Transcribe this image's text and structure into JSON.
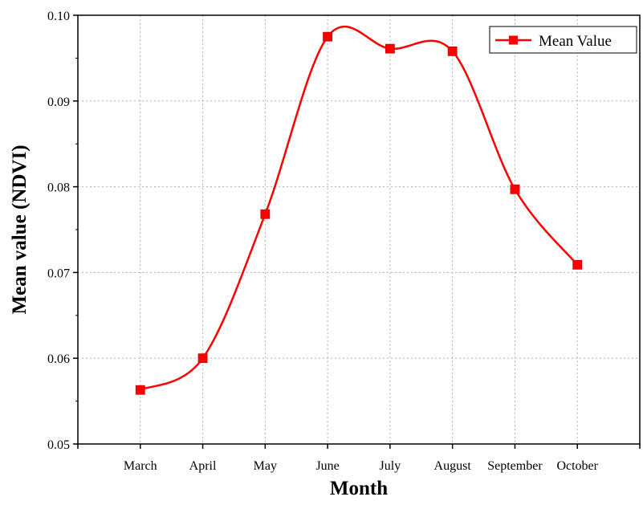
{
  "chart_data": {
    "type": "line",
    "title": "",
    "xlabel": "Month",
    "ylabel": "Mean value (NDVI)",
    "categories": [
      "March",
      "April",
      "May",
      "June",
      "July",
      "August",
      "September",
      "October"
    ],
    "series": [
      {
        "name": "Mean Value",
        "values": [
          0.0563,
          0.06,
          0.0768,
          0.0975,
          0.0961,
          0.0958,
          0.0797,
          0.0709
        ],
        "color": "#ff0000",
        "marker": "square",
        "smoothed": true
      }
    ],
    "ylim": [
      0.05,
      0.1
    ],
    "yticks": [
      "0.05",
      "0.06",
      "0.07",
      "0.08",
      "0.09",
      "0.10"
    ],
    "grid": true,
    "legend_position": "top-right"
  }
}
